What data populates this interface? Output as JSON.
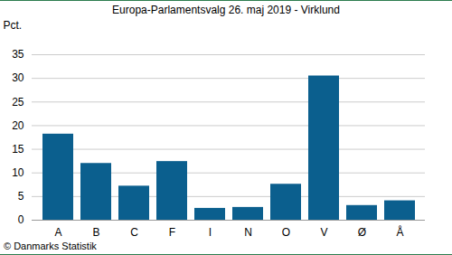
{
  "chart_data": {
    "type": "bar",
    "title": "Europa-Parlamentsvalg 26. maj 2019 - Virklund",
    "y_label": "Pct.",
    "caption": "© Danmarks Statistik",
    "categories": [
      "A",
      "B",
      "C",
      "F",
      "I",
      "N",
      "O",
      "V",
      "Ø",
      "Å"
    ],
    "values": [
      18.2,
      12.0,
      7.2,
      12.4,
      2.5,
      2.7,
      7.6,
      30.5,
      3.1,
      4.1
    ],
    "color": "#0b5f8e",
    "ylim": [
      0,
      35
    ],
    "yticks": [
      0,
      5,
      10,
      15,
      20,
      25,
      30,
      35
    ],
    "grid": true
  }
}
